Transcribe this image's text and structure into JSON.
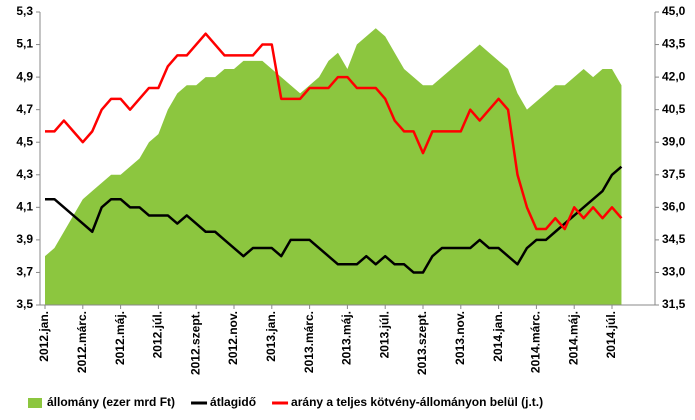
{
  "chart_data": {
    "type": "line",
    "categories": [
      "2012.jan.",
      null,
      null,
      null,
      "2012.márc.",
      null,
      null,
      null,
      "2012.máj.",
      null,
      null,
      null,
      "2012.júl.",
      null,
      null,
      null,
      "2012.szept.",
      null,
      null,
      null,
      "2012.nov.",
      null,
      null,
      null,
      "2013.jan.",
      null,
      null,
      null,
      "2013.márc.",
      null,
      null,
      null,
      "2013.máj.",
      null,
      null,
      null,
      "2013.júl.",
      null,
      null,
      null,
      "2013.szept.",
      null,
      null,
      null,
      "2013.nov.",
      null,
      null,
      null,
      "2014.jan.",
      null,
      null,
      null,
      "2014.márc.",
      null,
      null,
      null,
      "2014.máj.",
      null,
      null,
      null,
      "2014.júl.",
      null
    ],
    "series": [
      {
        "name": "állomány (ezer mrd Ft)",
        "type": "area",
        "color": "#8cc63f",
        "axis": "y",
        "values": [
          3.8,
          3.85,
          3.95,
          4.05,
          4.15,
          4.2,
          4.25,
          4.3,
          4.3,
          4.35,
          4.4,
          4.5,
          4.55,
          4.7,
          4.8,
          4.85,
          4.85,
          4.9,
          4.9,
          4.95,
          4.95,
          5.0,
          5.0,
          5.0,
          4.95,
          4.9,
          4.85,
          4.8,
          4.85,
          4.9,
          5.0,
          5.05,
          4.95,
          5.1,
          5.15,
          5.2,
          5.15,
          5.05,
          4.95,
          4.9,
          4.85,
          4.85,
          4.9,
          4.95,
          5.0,
          5.05,
          5.1,
          5.05,
          5.0,
          4.95,
          4.8,
          4.7,
          4.75,
          4.8,
          4.85,
          4.85,
          4.9,
          4.95,
          4.9,
          4.95,
          4.95,
          4.85
        ]
      },
      {
        "name": "átlagidő",
        "type": "line",
        "color": "#000000",
        "axis": "y",
        "values": [
          4.15,
          4.15,
          4.1,
          4.05,
          4.0,
          3.95,
          4.1,
          4.15,
          4.15,
          4.1,
          4.1,
          4.05,
          4.05,
          4.05,
          4.0,
          4.05,
          4.0,
          3.95,
          3.95,
          3.9,
          3.85,
          3.8,
          3.85,
          3.85,
          3.85,
          3.8,
          3.9,
          3.9,
          3.9,
          3.85,
          3.8,
          3.75,
          3.75,
          3.75,
          3.8,
          3.75,
          3.8,
          3.75,
          3.75,
          3.7,
          3.7,
          3.8,
          3.85,
          3.85,
          3.85,
          3.85,
          3.9,
          3.85,
          3.85,
          3.8,
          3.75,
          3.85,
          3.9,
          3.9,
          3.95,
          4.0,
          4.05,
          4.1,
          4.15,
          4.2,
          4.3,
          4.35
        ]
      },
      {
        "name": "arány a teljes kötvény-állományon belül (j.t.)",
        "type": "line",
        "color": "#ff0000",
        "axis": "y2",
        "values": [
          39.5,
          39.5,
          40.0,
          39.5,
          39.0,
          39.5,
          40.5,
          41.0,
          41.0,
          40.5,
          41.0,
          41.5,
          41.5,
          42.5,
          43.0,
          43.0,
          43.5,
          44.0,
          43.5,
          43.0,
          43.0,
          43.0,
          43.0,
          43.5,
          43.5,
          41.0,
          41.0,
          41.0,
          41.5,
          41.5,
          41.5,
          42.0,
          42.0,
          41.5,
          41.5,
          41.5,
          41.0,
          40.0,
          39.5,
          39.5,
          38.5,
          39.5,
          39.5,
          39.5,
          39.5,
          40.5,
          40.0,
          40.5,
          41.0,
          40.5,
          37.5,
          36.0,
          35.0,
          35.0,
          35.5,
          35.0,
          36.0,
          35.5,
          36.0,
          35.5,
          36.0,
          35.5
        ]
      }
    ],
    "ylim": [
      3.5,
      5.3
    ],
    "yticks": [
      {
        "value": 3.5,
        "label": "3,5"
      },
      {
        "value": 3.7,
        "label": "3,7"
      },
      {
        "value": 3.9,
        "label": "3,9"
      },
      {
        "value": 4.1,
        "label": "4,1"
      },
      {
        "value": 4.3,
        "label": "4,3"
      },
      {
        "value": 4.5,
        "label": "4,5"
      },
      {
        "value": 4.7,
        "label": "4,7"
      },
      {
        "value": 4.9,
        "label": "4,9"
      },
      {
        "value": 5.1,
        "label": "5,1"
      },
      {
        "value": 5.3,
        "label": "5,3"
      }
    ],
    "y2lim": [
      31.5,
      45.0
    ],
    "y2ticks": [
      {
        "value": 31.5,
        "label": "31,5"
      },
      {
        "value": 33.0,
        "label": "33,0"
      },
      {
        "value": 34.5,
        "label": "34,5"
      },
      {
        "value": 36.0,
        "label": "36,0"
      },
      {
        "value": 37.5,
        "label": "37,5"
      },
      {
        "value": 39.0,
        "label": "39,0"
      },
      {
        "value": 40.5,
        "label": "40,5"
      },
      {
        "value": 42.0,
        "label": "42,0"
      },
      {
        "value": 43.5,
        "label": "43,5"
      },
      {
        "value": 45.0,
        "label": "45,0"
      }
    ],
    "legend": "bottom"
  }
}
